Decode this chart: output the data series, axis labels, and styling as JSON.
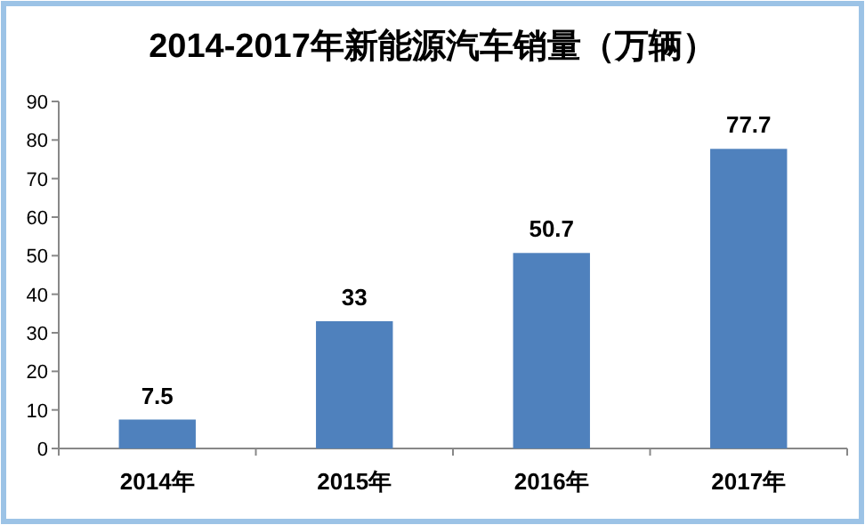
{
  "chart_data": {
    "type": "bar",
    "title": "2014-2017年新能源汽车销量（万辆）",
    "categories": [
      "2014年",
      "2015年",
      "2016年",
      "2017年"
    ],
    "values": [
      7.5,
      33,
      50.7,
      77.7
    ],
    "color": "#4f81bd",
    "ylim": [
      0,
      90
    ],
    "yticks": [
      0,
      10,
      20,
      30,
      40,
      50,
      60,
      70,
      80,
      90
    ],
    "data_labels": true,
    "grid": false
  }
}
